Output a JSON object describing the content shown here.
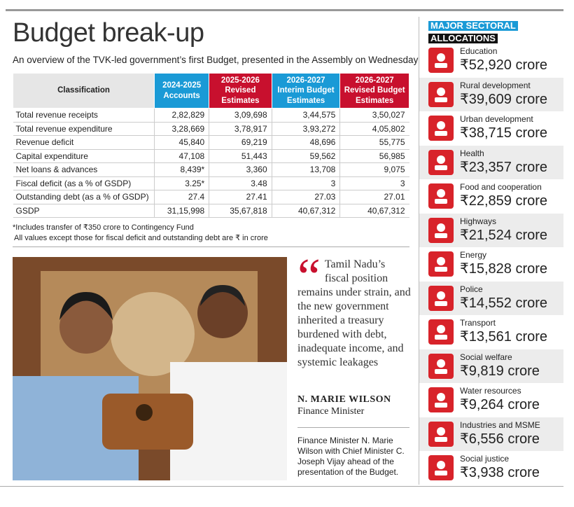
{
  "header": {
    "title": "Budget break-up",
    "subtitle": "An overview of the TVK-led government’s first Budget, presented in the Assembly on Wednesday"
  },
  "table": {
    "headers": [
      "Classification",
      "2024-2025 Accounts",
      "2025-2026 Revised Estimates",
      "2026-2027 Interim Budget Estimates",
      "2026-2027 Revised Budget Estimates"
    ],
    "rows": [
      [
        "Total revenue receipts",
        "2,82,829",
        "3,09,698",
        "3,44,575",
        "3,50,027"
      ],
      [
        "Total revenue expenditure",
        "3,28,669",
        "3,78,917",
        "3,93,272",
        "4,05,802"
      ],
      [
        "Revenue deficit",
        "45,840",
        "69,219",
        "48,696",
        "55,775"
      ],
      [
        "Capital expenditure",
        "47,108",
        "51,443",
        "59,562",
        "56,985"
      ],
      [
        "Net loans & advances",
        "8,439*",
        "3,360",
        "13,708",
        "9,075"
      ],
      [
        "Fiscal deficit  (as a % of GSDP)",
        "3.25*",
        "3.48",
        "3",
        "3"
      ],
      [
        "Outstanding debt (as a % of GSDP)",
        "27.4",
        "27.41",
        "27.03",
        "27.01"
      ],
      [
        "GSDP",
        "31,15,998",
        "35,67,818",
        "40,67,312",
        "40,67,312"
      ]
    ],
    "notes": [
      "*Includes transfer of ₹350 crore to Contingency Fund",
      "All values except those for fiscal deficit and outstanding debt are ₹ in crore"
    ]
  },
  "quote": {
    "text": "Tamil Nadu’s fiscal position remains under strain, and the new government inherited a treasury burdened with debt, inadequate income, and systemic leakages",
    "author": "N. MARIE WILSON",
    "role": "Finance Minister"
  },
  "caption": "Finance Minister N. Marie Wilson with Chief Minister C. Joseph Vijay ahead of the presentation of the Budget.",
  "allocations": {
    "title_line1": "MAJOR SECTORAL",
    "title_line2": "ALLOCATIONS",
    "items": [
      {
        "label": "Education",
        "amount": "₹52,920 crore"
      },
      {
        "label": "Rural development",
        "amount": "₹39,609 crore"
      },
      {
        "label": "Urban development",
        "amount": "₹38,715 crore"
      },
      {
        "label": "Health",
        "amount": "₹23,357 crore"
      },
      {
        "label": "Food and cooperation",
        "amount": "₹22,859 crore"
      },
      {
        "label": "Highways",
        "amount": "₹21,524 crore"
      },
      {
        "label": "Energy",
        "amount": "₹15,828 crore"
      },
      {
        "label": "Police",
        "amount": "₹14,552 crore"
      },
      {
        "label": "Transport",
        "amount": "₹13,561 crore"
      },
      {
        "label": "Social welfare",
        "amount": "₹9,819 crore"
      },
      {
        "label": "Water resources",
        "amount": "₹9,264 crore"
      },
      {
        "label": "Industries and MSME",
        "amount": "₹6,556 crore"
      },
      {
        "label": "Social justice",
        "amount": "₹3,938 crore"
      }
    ]
  }
}
